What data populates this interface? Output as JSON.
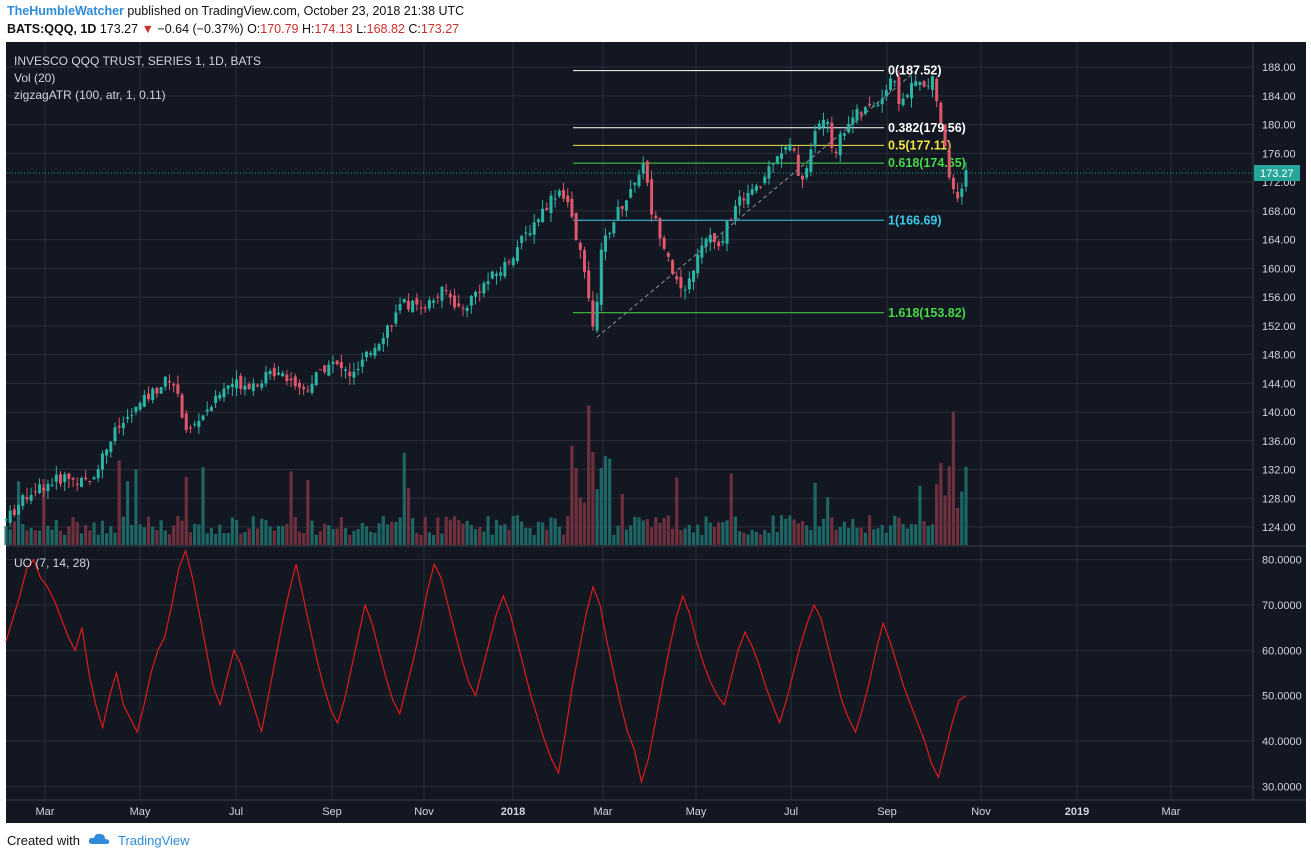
{
  "header": {
    "author": "TheHumbleWatcher",
    "published": "published on TradingView.com, October 23, 2018 21:38 UTC",
    "symbol": "BATS:QQQ, 1D",
    "last": "173.27",
    "change": "−0.64 (−0.37%)",
    "o_label": "O:",
    "o_value": "170.79",
    "h_label": "H:",
    "h_value": "174.13",
    "l_label": "L:",
    "l_value": "168.82",
    "c_label": "C:",
    "c_value": "173.27"
  },
  "legend": {
    "line1": "INVESCO QQQ TRUST, SERIES 1, 1D, BATS",
    "line2": "Vol (20)",
    "line3": "zigzagATR (100, atr, 1, 0.11)",
    "uo": "UO (7, 14, 28)"
  },
  "footer": {
    "created_with": "Created with",
    "brand": "TradingView"
  },
  "colors": {
    "background": "#131722",
    "grid": "#2a2e39",
    "up": "#2bb3a3",
    "down": "#e0566b",
    "uo_line": "#e01b1b",
    "last_price_tag": "#26a69a"
  },
  "chart_data": [
    {
      "type": "candlestick",
      "title": "INVESCO QQQ TRUST, SERIES 1, 1D, BATS",
      "x_ticks": [
        "Mar",
        "May",
        "Jul",
        "Sep",
        "Nov",
        "2018",
        "Mar",
        "May",
        "Jul",
        "Sep",
        "Nov",
        "2019",
        "Mar"
      ],
      "y_ticks": [
        "124.00",
        "128.00",
        "132.00",
        "136.00",
        "140.00",
        "144.00",
        "148.00",
        "152.00",
        "156.00",
        "160.00",
        "164.00",
        "168.00",
        "172.00",
        "176.00",
        "180.00",
        "184.00",
        "188.00"
      ],
      "ylim": [
        121.5,
        191.5
      ],
      "last_price": 173.27,
      "last_price_label": "173.27",
      "price_path": [
        [
          0,
          125
        ],
        [
          0.03,
          129
        ],
        [
          0.07,
          131
        ],
        [
          0.1,
          130
        ],
        [
          0.13,
          137
        ],
        [
          0.17,
          142
        ],
        [
          0.2,
          145
        ],
        [
          0.22,
          137
        ],
        [
          0.24,
          140
        ],
        [
          0.27,
          144
        ],
        [
          0.3,
          144
        ],
        [
          0.33,
          146
        ],
        [
          0.36,
          143
        ],
        [
          0.39,
          147
        ],
        [
          0.42,
          145
        ],
        [
          0.45,
          150
        ],
        [
          0.48,
          155
        ],
        [
          0.51,
          155
        ],
        [
          0.53,
          157
        ],
        [
          0.55,
          154
        ],
        [
          0.57,
          157
        ],
        [
          0.6,
          160
        ],
        [
          0.63,
          165
        ],
        [
          0.66,
          170
        ],
        [
          0.67,
          171
        ],
        [
          0.68,
          169
        ],
        [
          0.69,
          163
        ],
        [
          0.7,
          160
        ],
        [
          0.71,
          151
        ],
        [
          0.72,
          163
        ],
        [
          0.74,
          168
        ],
        [
          0.76,
          172
        ],
        [
          0.77,
          175
        ],
        [
          0.78,
          168
        ],
        [
          0.8,
          162
        ],
        [
          0.81,
          158
        ],
        [
          0.82,
          156
        ],
        [
          0.83,
          160
        ],
        [
          0.85,
          165
        ],
        [
          0.86,
          162
        ],
        [
          0.87,
          166
        ],
        [
          0.89,
          170
        ],
        [
          0.91,
          171
        ],
        [
          0.93,
          176
        ],
        [
          0.95,
          177
        ],
        [
          0.96,
          172
        ],
        [
          0.97,
          175
        ],
        [
          0.98,
          180
        ],
        [
          0.99,
          181
        ],
        [
          1.0,
          176
        ],
        [
          1.02,
          181
        ],
        [
          1.04,
          182
        ],
        [
          1.06,
          184
        ],
        [
          1.07,
          187
        ],
        [
          1.08,
          183
        ],
        [
          1.1,
          186
        ],
        [
          1.11,
          185
        ],
        [
          1.12,
          186
        ],
        [
          1.13,
          180
        ],
        [
          1.14,
          172
        ],
        [
          1.15,
          169
        ],
        [
          1.16,
          173
        ]
      ],
      "fib_levels": [
        {
          "label": "0(187.52)",
          "value": 187.52,
          "color": "#ffffff"
        },
        {
          "label": "0.382(179.56)",
          "value": 179.56,
          "color": "#ffffff"
        },
        {
          "label": "0.5(177.11)",
          "value": 177.11,
          "color": "#f5e642"
        },
        {
          "label": "0.618(174.65)",
          "value": 174.65,
          "color": "#46d846"
        },
        {
          "label": "1(166.69)",
          "value": 166.69,
          "color": "#3ec8e8"
        },
        {
          "label": "1.618(153.82)",
          "value": 153.82,
          "color": "#46d846"
        }
      ],
      "zigzag": [
        [
          0.714,
          150.4
        ],
        [
          1.1,
          187.52
        ]
      ]
    },
    {
      "type": "bar",
      "title": "Vol (20)",
      "note": "volume bars overlaid at bottom of price panel"
    },
    {
      "type": "line",
      "title": "UO (7, 14, 28)",
      "y_ticks": [
        "30.0000",
        "40.0000",
        "50.0000",
        "60.0000",
        "70.0000",
        "80.0000"
      ],
      "ylim": [
        27,
        83
      ],
      "values": [
        62,
        67,
        72,
        78,
        80,
        76,
        74,
        71,
        67,
        63,
        60,
        65,
        55,
        48,
        43,
        50,
        55,
        48,
        45,
        42,
        48,
        55,
        60,
        63,
        70,
        78,
        82,
        76,
        68,
        60,
        52,
        48,
        54,
        60,
        57,
        52,
        47,
        42,
        50,
        58,
        66,
        73,
        79,
        72,
        65,
        58,
        52,
        47,
        44,
        49,
        56,
        63,
        70,
        66,
        60,
        54,
        49,
        46,
        52,
        58,
        65,
        73,
        79,
        76,
        70,
        64,
        58,
        53,
        50,
        56,
        62,
        68,
        72,
        68,
        62,
        56,
        50,
        45,
        40,
        36,
        33,
        42,
        52,
        60,
        68,
        74,
        70,
        62,
        55,
        48,
        42,
        38,
        31,
        36,
        44,
        52,
        60,
        67,
        72,
        68,
        62,
        57,
        53,
        50,
        48,
        54,
        60,
        64,
        61,
        57,
        52,
        48,
        44,
        49,
        55,
        61,
        66,
        70,
        67,
        61,
        55,
        49,
        45,
        42,
        47,
        53,
        60,
        66,
        62,
        57,
        52,
        48,
        44,
        40,
        35,
        32,
        38,
        44,
        49,
        50
      ]
    }
  ]
}
